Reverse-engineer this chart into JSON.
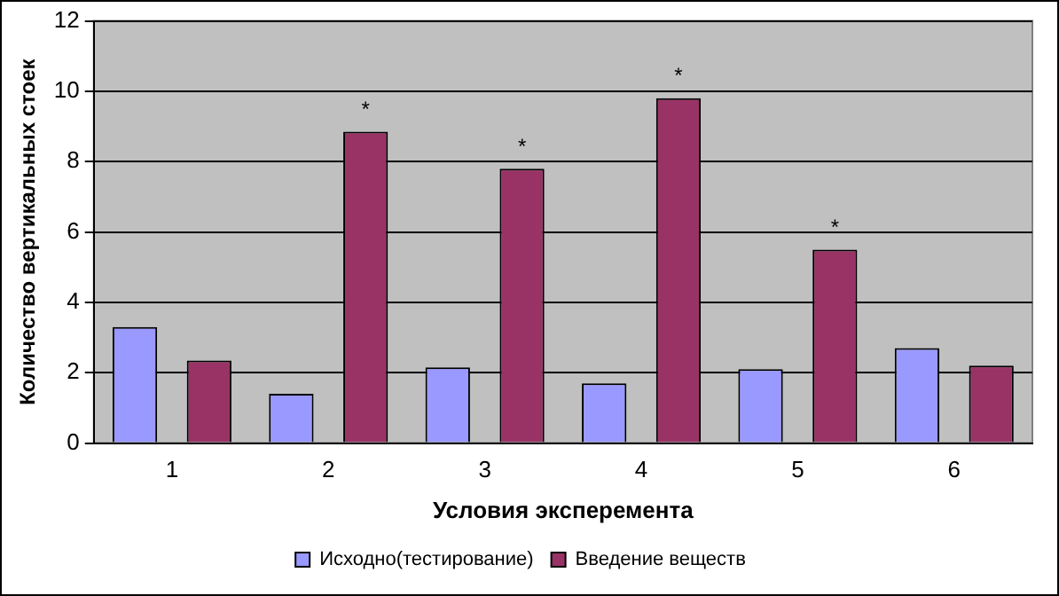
{
  "chart_data": {
    "type": "bar",
    "xlabel": "Условия эксперемента",
    "ylabel": "Количество вертикальных стоек",
    "categories": [
      "1",
      "2",
      "3",
      "4",
      "5",
      "6"
    ],
    "series": [
      {
        "name": "Исходно(тестирование)",
        "color": "#9999ff",
        "values": [
          3.3,
          1.4,
          2.15,
          1.7,
          2.1,
          2.7
        ]
      },
      {
        "name": "Введение веществ",
        "color": "#993366",
        "values": [
          2.35,
          8.85,
          7.8,
          9.8,
          5.5,
          2.2
        ],
        "value_labels": [
          null,
          "*",
          "*",
          "*",
          "*",
          null
        ]
      }
    ],
    "ylim": [
      0,
      12
    ],
    "yticks": [
      0,
      2,
      4,
      6,
      8,
      10,
      12
    ],
    "grid": "y",
    "legend": "bottom"
  }
}
